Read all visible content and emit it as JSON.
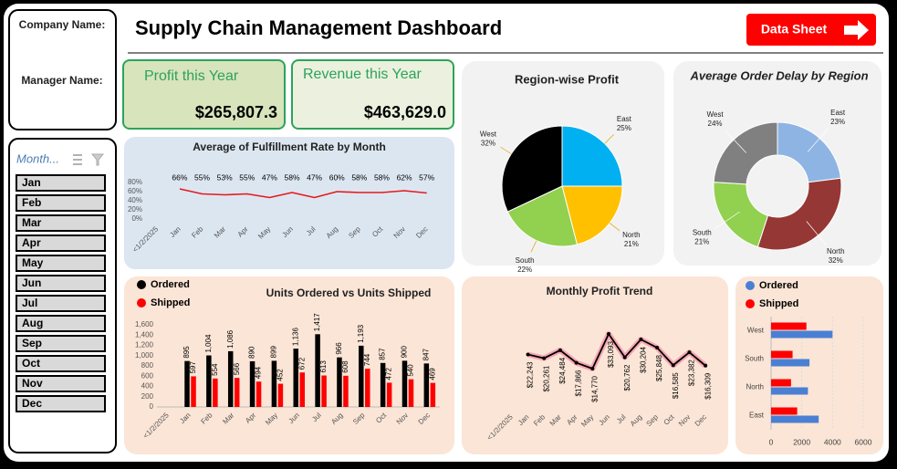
{
  "header": {
    "company_label": "Company Name:",
    "manager_label": "Manager Name:",
    "title": "Supply Chain Management Dashboard",
    "button": "Data Sheet"
  },
  "kpis": [
    {
      "label": "Profit this Year",
      "value": "$265,807.3"
    },
    {
      "label": "Revenue this Year",
      "value": "$463,629.0"
    }
  ],
  "slicer": {
    "title": "Month...",
    "items": [
      "Jan",
      "Feb",
      "Mar",
      "Apr",
      "May",
      "Jun",
      "Jul",
      "Aug",
      "Sep",
      "Oct",
      "Nov",
      "Dec"
    ]
  },
  "chart_data": [
    {
      "type": "line",
      "title": "Average of Fulfillment Rate by Month",
      "categories": [
        "<1/2/2025",
        "Jan",
        "Feb",
        "Mar",
        "Apr",
        "May",
        "Jun",
        "Jul",
        "Aug",
        "Sep",
        "Oct",
        "Nov",
        "Dec"
      ],
      "values": [
        null,
        66,
        55,
        53,
        55,
        47,
        58,
        47,
        60,
        58,
        58,
        62,
        57
      ],
      "value_labels": [
        null,
        "66%",
        "55%",
        "53%",
        "55%",
        "47%",
        "58%",
        "47%",
        "60%",
        "58%",
        "58%",
        "62%",
        "57%"
      ],
      "color": "#e31a1c",
      "ylim": [
        0,
        80
      ],
      "yticks": [
        {
          "value": 0,
          "label": "0%"
        },
        {
          "value": 20,
          "label": "20%"
        },
        {
          "value": 40,
          "label": "40%"
        },
        {
          "value": 60,
          "label": "60%"
        },
        {
          "value": 80,
          "label": "80%"
        }
      ]
    },
    {
      "type": "pie",
      "title": "Region-wise Profit",
      "categories": [
        "East",
        "North",
        "South",
        "West"
      ],
      "values": [
        25,
        21,
        22,
        32
      ],
      "value_labels": [
        "25%",
        "21%",
        "22%",
        "32%"
      ],
      "colors": [
        "#00b0f0",
        "#ffc000",
        "#92d050",
        "#000000"
      ]
    },
    {
      "type": "donut",
      "title": "Average Order Delay by Region",
      "categories": [
        "East",
        "North",
        "South",
        "West"
      ],
      "values": [
        23,
        32,
        21,
        24
      ],
      "value_labels": [
        "23%",
        "32%",
        "21%",
        "24%"
      ],
      "colors": [
        "#8eb4e3",
        "#953735",
        "#92d050",
        "#808080"
      ]
    },
    {
      "type": "bar",
      "title": "Units Ordered vs Units Shipped",
      "categories": [
        "<1/2/2025",
        "Jan",
        "Feb",
        "Mar",
        "Apr",
        "May",
        "Jun",
        "Jul",
        "Aug",
        "Sep",
        "Oct",
        "Nov",
        "Dec"
      ],
      "series": [
        {
          "name": "Ordered",
          "color": "#000000",
          "values": [
            null,
            895,
            1004,
            1086,
            890,
            899,
            1136,
            1417,
            966,
            1193,
            857,
            900,
            847
          ],
          "value_labels": [
            null,
            "895",
            "1,004",
            "1,086",
            "890",
            "899",
            "1,136",
            "1,417",
            "966",
            "1,193",
            "857",
            "900",
            "847"
          ]
        },
        {
          "name": "Shipped",
          "color": "#ff0000",
          "values": [
            null,
            597,
            554,
            566,
            494,
            452,
            672,
            613,
            608,
            744,
            472,
            540,
            469
          ]
        }
      ],
      "ylim": [
        0,
        1600
      ],
      "yticks": [
        0,
        200,
        400,
        600,
        800,
        {
          "value": 1000,
          "label": "1,000"
        },
        {
          "value": 1200,
          "label": "1,200"
        },
        {
          "value": 1400,
          "label": "1,400"
        },
        {
          "value": 1600,
          "label": "1,600"
        }
      ],
      "legend": "top-left"
    },
    {
      "type": "line",
      "title": "Monthly Profit Trend",
      "categories": [
        "<1/2/2025",
        "Jan",
        "Feb",
        "Mar",
        "Apr",
        "May",
        "Jun",
        "Jul",
        "Aug",
        "Sep",
        "Oct",
        "Nov",
        "Dec"
      ],
      "values": [
        null,
        22243,
        20261,
        24484,
        17866,
        14770,
        33093,
        20762,
        30204,
        25848,
        16585,
        23382,
        16309
      ],
      "value_labels": [
        null,
        "$22,243",
        "$20,261",
        "$24,484",
        "$17,866",
        "$14,770",
        "$33,093",
        "$20,762",
        "$30,204",
        "$25,848",
        "$16,585",
        "$23,382",
        "$16,309"
      ],
      "color": "#000000"
    },
    {
      "type": "hbar",
      "categories": [
        "West",
        "South",
        "North",
        "East"
      ],
      "series": [
        {
          "name": "Ordered",
          "color": "#4a7fd4",
          "values": [
            4000,
            2500,
            2400,
            3100
          ]
        },
        {
          "name": "Shipped",
          "color": "#ff0000",
          "values": [
            2300,
            1400,
            1300,
            1700
          ]
        }
      ],
      "xlim": [
        0,
        6000
      ],
      "xticks": [
        0,
        2000,
        4000,
        6000
      ],
      "legend": "top"
    }
  ]
}
